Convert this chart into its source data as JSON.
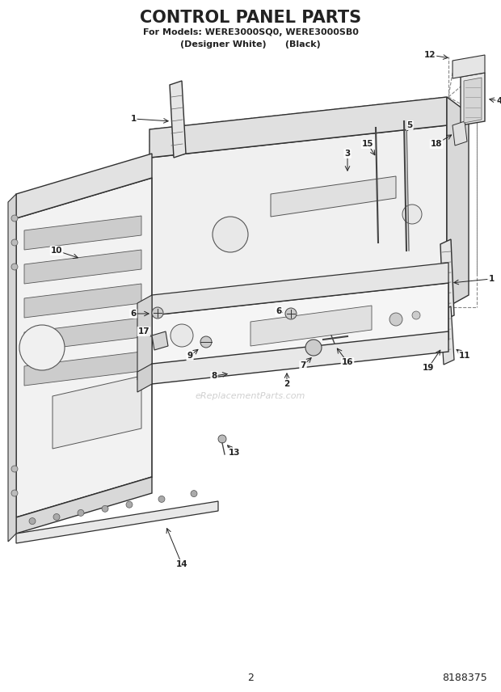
{
  "title": "CONTROL PANEL PARTS",
  "subtitle1": "For Models: WERE3000SQ0, WERE3000SB0",
  "subtitle2": "(Designer White)      (Black)",
  "page_number": "2",
  "part_number": "8188375",
  "watermark": "eReplacementParts.com",
  "bg": "#ffffff",
  "lc": "#222222",
  "figsize": [
    6.2,
    8.56
  ],
  "dpi": 100,
  "xlim": [
    0,
    620
  ],
  "ylim": [
    0,
    856
  ]
}
